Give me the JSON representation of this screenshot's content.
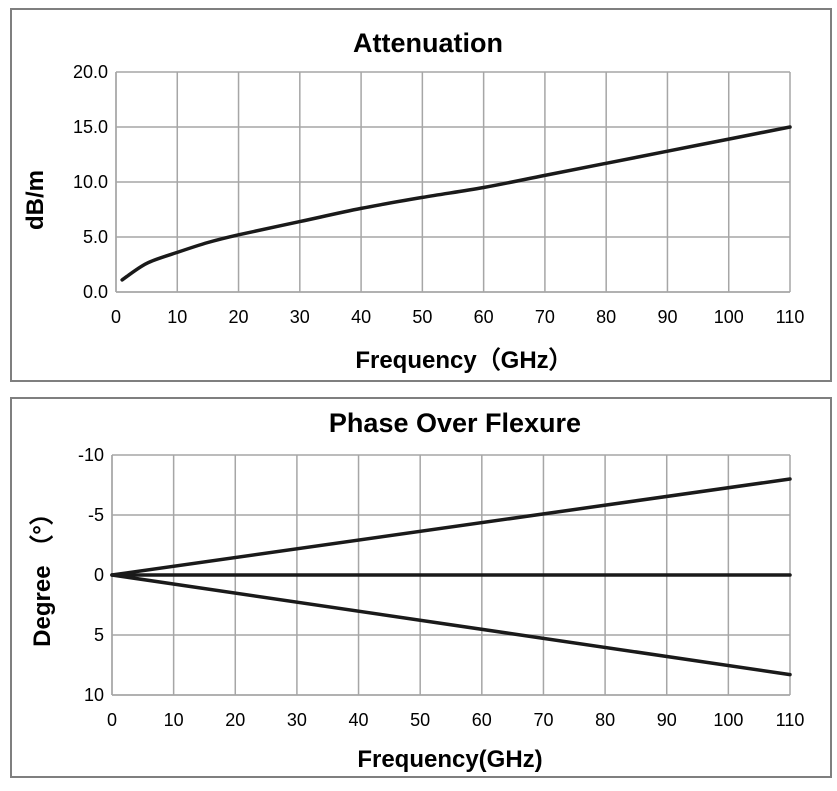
{
  "chart_data": [
    {
      "type": "line",
      "title": "Attenuation",
      "xlabel": "Frequency（GHz）",
      "ylabel": "dB/m",
      "xlim": [
        0,
        110
      ],
      "ylim": [
        0,
        20
      ],
      "x_ticks": [
        "0",
        "10",
        "20",
        "30",
        "40",
        "50",
        "60",
        "70",
        "80",
        "90",
        "100",
        "110"
      ],
      "y_ticks": [
        "0.0",
        "5.0",
        "10.0",
        "15.0",
        "20.0"
      ],
      "grid": true,
      "series": [
        {
          "x": [
            1,
            5,
            10,
            15,
            20,
            30,
            40,
            50,
            60,
            70,
            80,
            90,
            100,
            110
          ],
          "y": [
            1.1,
            2.6,
            3.6,
            4.5,
            5.2,
            6.4,
            7.6,
            8.6,
            9.5,
            10.6,
            11.7,
            12.8,
            13.9,
            15.0
          ]
        }
      ]
    },
    {
      "type": "line",
      "title": "Phase Over Flexure",
      "xlabel": "Frequency(GHz)",
      "ylabel": "Degree （°）",
      "xlim": [
        0,
        110
      ],
      "ylim": [
        10,
        -10
      ],
      "y_inverted": true,
      "x_ticks": [
        "0",
        "10",
        "20",
        "30",
        "40",
        "50",
        "60",
        "70",
        "80",
        "90",
        "100",
        "110"
      ],
      "y_ticks": [
        "-10",
        "-5",
        "0",
        "5",
        "10"
      ],
      "grid": true,
      "series": [
        {
          "x": [
            0,
            110
          ],
          "y": [
            0,
            -8.0
          ]
        },
        {
          "x": [
            0,
            110
          ],
          "y": [
            0,
            0
          ]
        },
        {
          "x": [
            0,
            110
          ],
          "y": [
            0,
            8.3
          ]
        }
      ]
    }
  ]
}
